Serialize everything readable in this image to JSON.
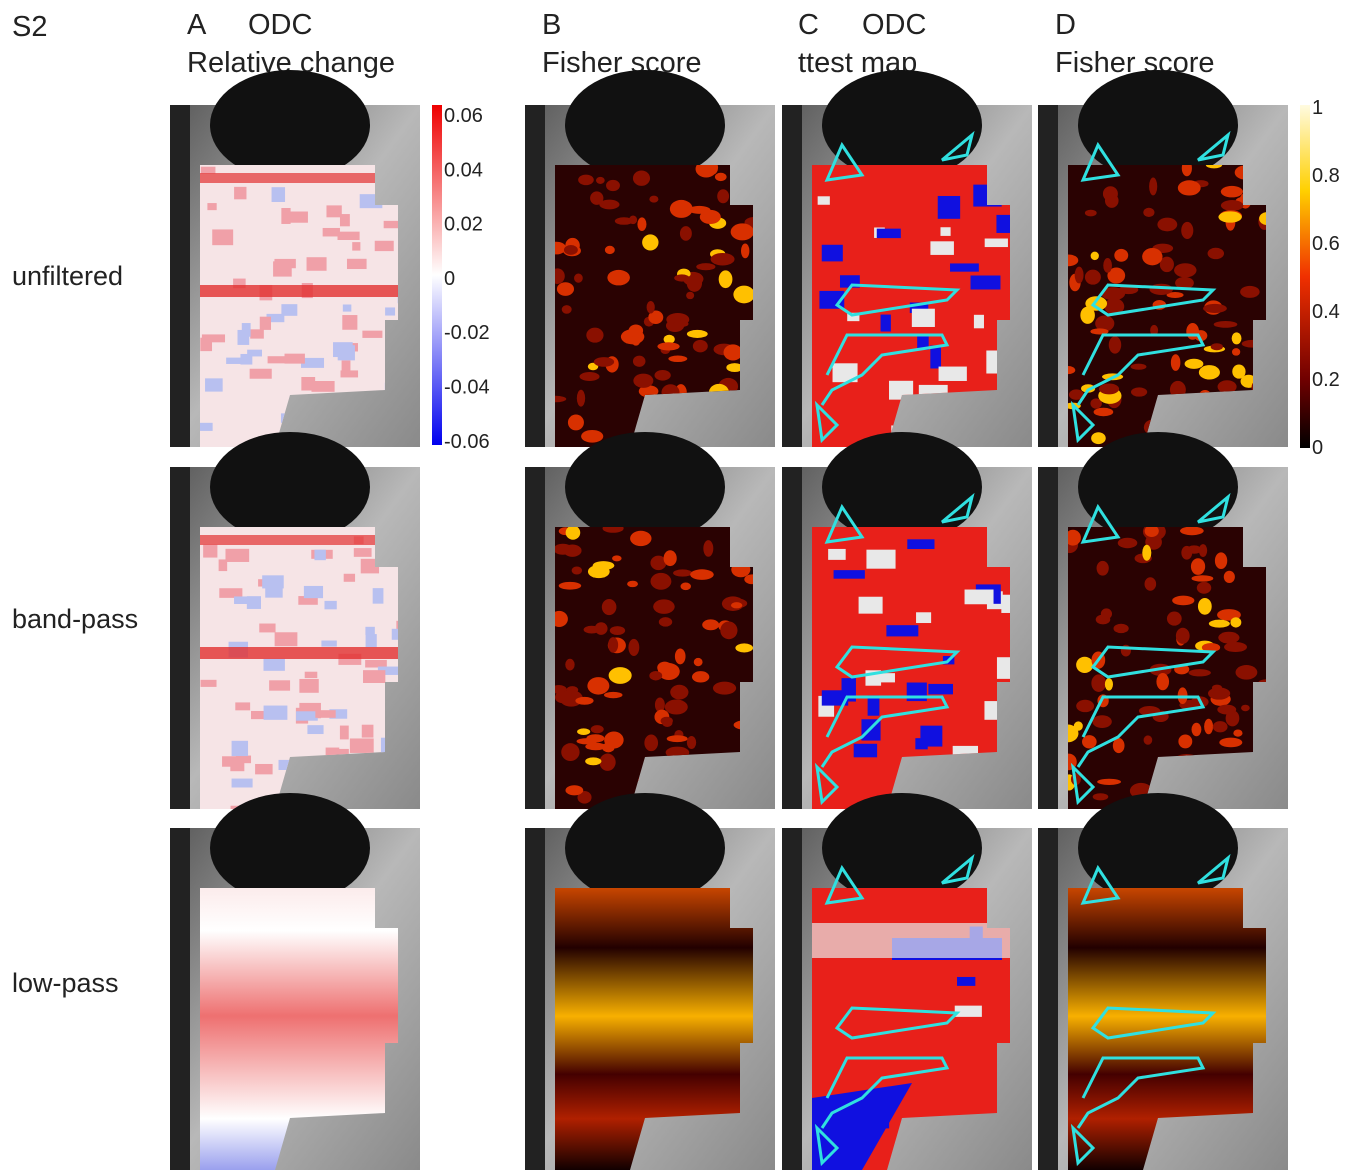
{
  "figure_label": "S2",
  "columns": [
    {
      "letter": "A",
      "title": "ODC",
      "subtitle": "Relative change"
    },
    {
      "letter": "B",
      "subtitle": "Fisher score"
    },
    {
      "letter": "C",
      "title": "ODC",
      "subtitle": "ttest map"
    },
    {
      "letter": "D",
      "subtitle": "Fisher score"
    }
  ],
  "rows": [
    "unfiltered",
    "band-pass",
    "low-pass"
  ],
  "colorbar_a": {
    "ticks": [
      "0.06",
      "0.04",
      "0.02",
      "0",
      "-0.02",
      "-0.04",
      "-0.06"
    ]
  },
  "colorbar_d": {
    "ticks": [
      "1",
      "0.8",
      "0.6",
      "0.4",
      "0.2",
      "0"
    ]
  }
}
